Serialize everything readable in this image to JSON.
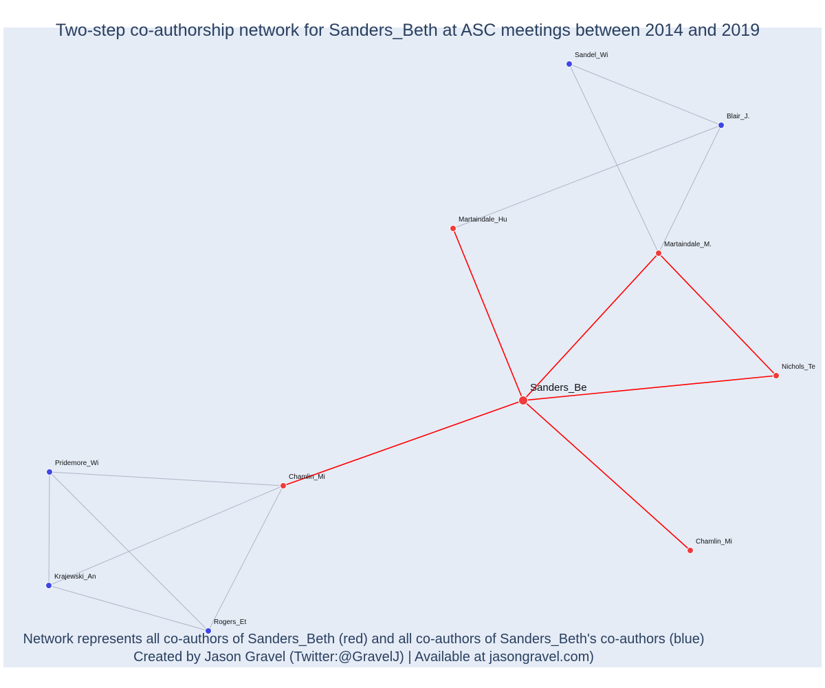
{
  "title": "Two-step co-authorship network for Sanders_Beth at ASC meetings between 2014 and 2019",
  "caption": {
    "line1": "Network represents all co-authors of Sanders_Beth (red) and all co-authors of Sanders_Beth's co-authors (blue)",
    "line2": "Created by Jason Gravel (Twitter:@GravelJ) | Available at jasongravel.com)"
  },
  "colors": {
    "plot_background": "#e5ecf6",
    "first_step": "#ef3b3b",
    "second_step": "#3f46e6",
    "first_step_edge": "#ff0000",
    "second_step_edge": "#b0b4c6",
    "text": "#2a3f5f"
  },
  "nodes": [
    {
      "id": "sanders_be",
      "label": "Sanders_Be",
      "group": "ego"
    },
    {
      "id": "martaindale_hu",
      "label": "Martaindale_Hu",
      "group": "coauthor"
    },
    {
      "id": "martaindale_m",
      "label": "Martaindale_M.",
      "group": "coauthor"
    },
    {
      "id": "nichols_te",
      "label": "Nichols_Te",
      "group": "coauthor"
    },
    {
      "id": "chamlin_mi_1",
      "label": "Chamlin_Mi",
      "group": "coauthor"
    },
    {
      "id": "chamlin_mi_2",
      "label": "Chamlin_Mi",
      "group": "coauthor"
    },
    {
      "id": "sandel_wi",
      "label": "Sandel_Wi",
      "group": "second"
    },
    {
      "id": "blair_j",
      "label": "Blair_J.",
      "group": "second"
    },
    {
      "id": "pridemore_wi",
      "label": "Pridemore_Wi",
      "group": "second"
    },
    {
      "id": "krajewski_an",
      "label": "Krajewski_An",
      "group": "second"
    },
    {
      "id": "rogers_et",
      "label": "Rogers_Et",
      "group": "second"
    }
  ],
  "edges": [
    {
      "source": "sanders_be",
      "target": "martaindale_hu",
      "type": "first"
    },
    {
      "source": "sanders_be",
      "target": "martaindale_m",
      "type": "first"
    },
    {
      "source": "sanders_be",
      "target": "nichols_te",
      "type": "first"
    },
    {
      "source": "sanders_be",
      "target": "chamlin_mi_1",
      "type": "first"
    },
    {
      "source": "sanders_be",
      "target": "chamlin_mi_2",
      "type": "first"
    },
    {
      "source": "martaindale_m",
      "target": "nichols_te",
      "type": "first"
    },
    {
      "source": "sandel_wi",
      "target": "blair_j",
      "type": "second"
    },
    {
      "source": "sandel_wi",
      "target": "martaindale_m",
      "type": "second"
    },
    {
      "source": "blair_j",
      "target": "martaindale_m",
      "type": "second"
    },
    {
      "source": "blair_j",
      "target": "martaindale_hu",
      "type": "second"
    },
    {
      "source": "pridemore_wi",
      "target": "chamlin_mi_1",
      "type": "second"
    },
    {
      "source": "pridemore_wi",
      "target": "krajewski_an",
      "type": "second"
    },
    {
      "source": "pridemore_wi",
      "target": "rogers_et",
      "type": "second"
    },
    {
      "source": "krajewski_an",
      "target": "chamlin_mi_1",
      "type": "second"
    },
    {
      "source": "krajewski_an",
      "target": "rogers_et",
      "type": "second"
    },
    {
      "source": "rogers_et",
      "target": "chamlin_mi_1",
      "type": "second"
    }
  ]
}
